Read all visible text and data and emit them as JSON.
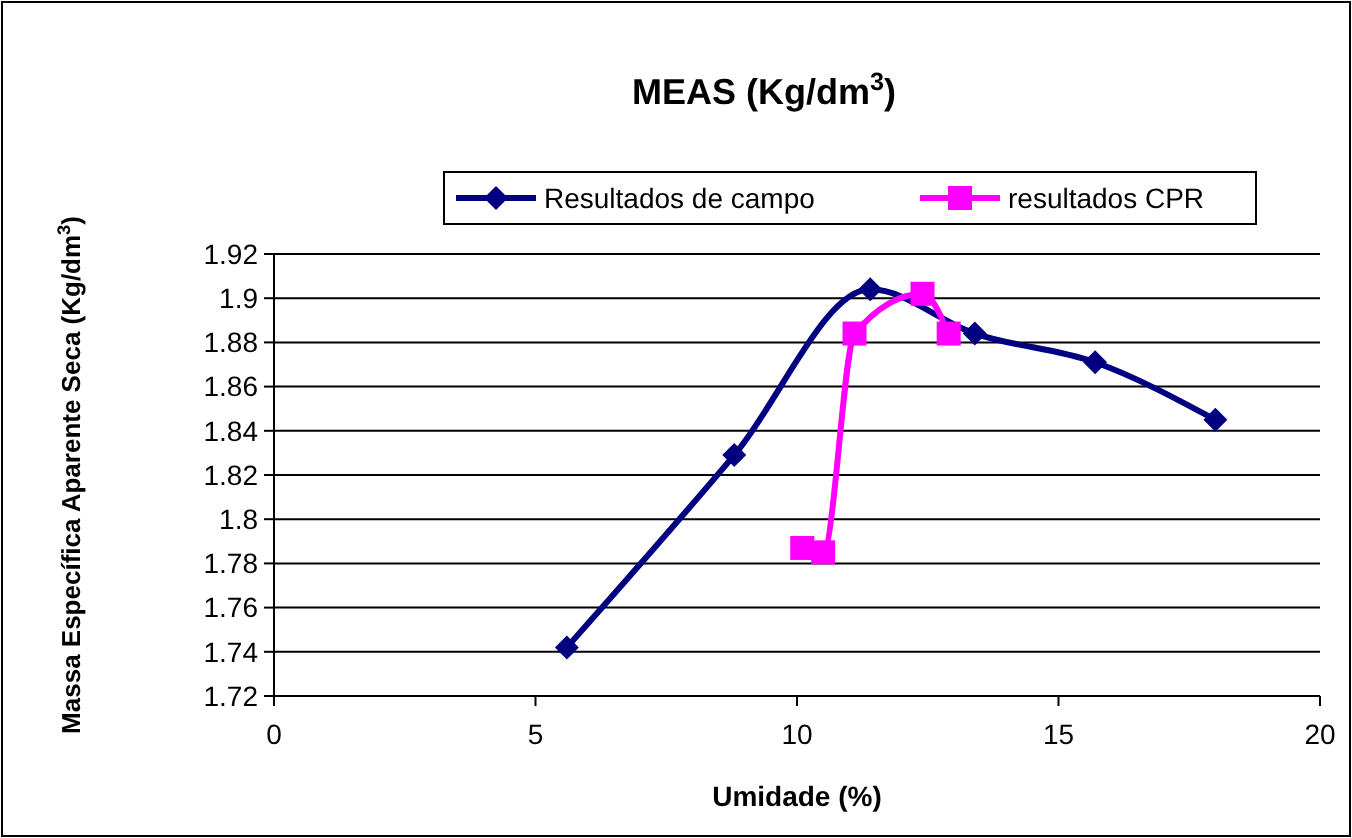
{
  "chart_data": {
    "type": "line",
    "title": "MEAS (Kg/dm$^{3}$)",
    "xlabel": "Umidade (%)",
    "ylabel": "Massa Específica Aparente Seca (Kg/dm$^{3}$)",
    "series": [
      {
        "name": "Resultados de campo",
        "color": "#000080",
        "marker": "diamond",
        "x": [
          5.6,
          8.8,
          11.4,
          13.4,
          15.7,
          18.0
        ],
        "values": [
          1.742,
          1.829,
          1.904,
          1.884,
          1.871,
          1.845
        ]
      },
      {
        "name": "resultados CPR",
        "color": "#ff00ff",
        "marker": "square",
        "x": [
          10.1,
          10.5,
          11.1,
          12.4,
          12.9
        ],
        "values": [
          1.787,
          1.785,
          1.884,
          1.902,
          1.884
        ]
      }
    ],
    "xlim": [
      0,
      20
    ],
    "xticks": [
      0,
      5,
      10,
      15,
      20
    ],
    "ylim": [
      1.72,
      1.92
    ],
    "yticks": [
      1.72,
      1.74,
      1.76,
      1.78,
      1.8,
      1.82,
      1.84,
      1.86,
      1.88,
      1.9,
      1.92
    ],
    "grid": "y",
    "legend": "top"
  }
}
